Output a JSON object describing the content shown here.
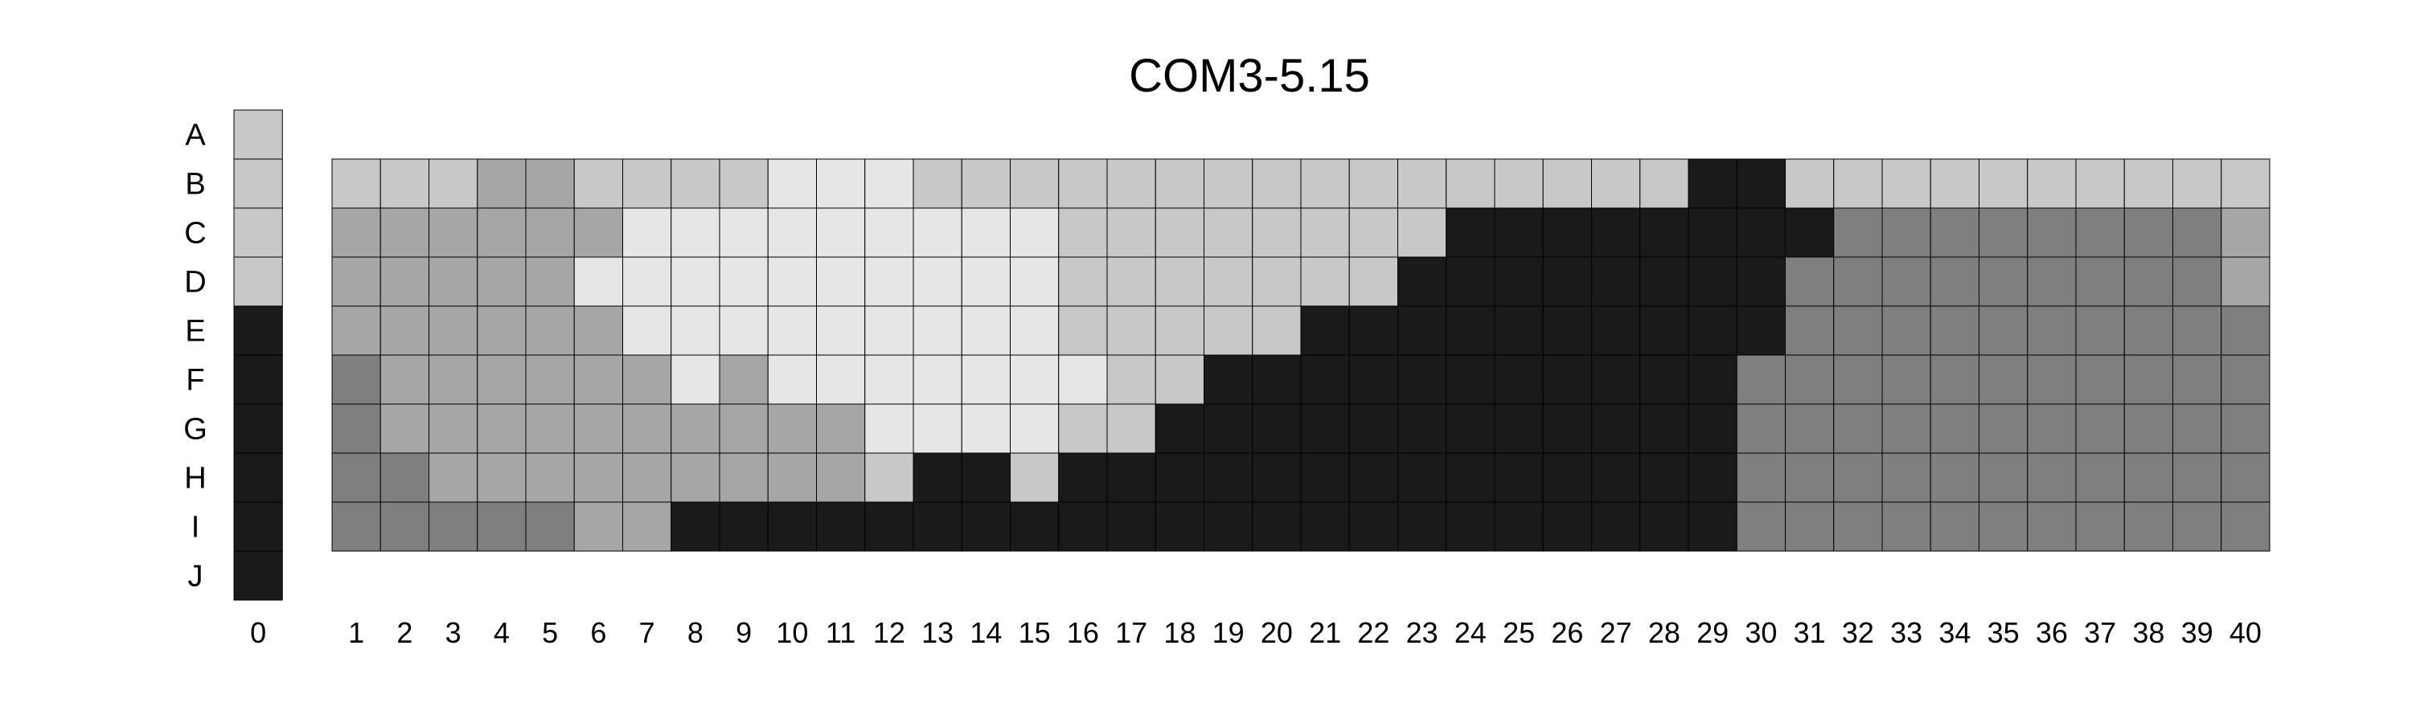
{
  "chart_data": {
    "type": "heatmap",
    "title": "COM3-5.15",
    "rows": [
      "A",
      "B",
      "C",
      "D",
      "E",
      "F",
      "G",
      "H",
      "I",
      "J"
    ],
    "columns": [
      "0",
      "1",
      "2",
      "3",
      "4",
      "5",
      "6",
      "7",
      "8",
      "9",
      "10",
      "11",
      "12",
      "13",
      "14",
      "15",
      "16",
      "17",
      "18",
      "19",
      "20",
      "21",
      "22",
      "23",
      "24",
      "25",
      "26",
      "27",
      "28",
      "29",
      "30",
      "31",
      "32",
      "33",
      "34",
      "35",
      "36",
      "37",
      "38",
      "39",
      "40"
    ],
    "palette": {
      "1": "#e6e6e6",
      "2": "#c8c8c8",
      "3": "#a6a6a6",
      "4": "#7f7f7f",
      "5": "#1a1a1a"
    },
    "column_0": {
      "A": 2,
      "B": 2,
      "C": 2,
      "D": 2,
      "E": 5,
      "F": 5,
      "G": 5,
      "H": 5,
      "I": 5,
      "J": 5
    },
    "grid_rows": [
      "B",
      "C",
      "D",
      "E",
      "F",
      "G",
      "H",
      "I"
    ],
    "grid_values": [
      [
        2,
        2,
        2,
        3,
        3,
        2,
        2,
        2,
        2,
        1,
        1,
        1,
        2,
        2,
        2,
        2,
        2,
        2,
        2,
        2,
        2,
        2,
        2,
        2,
        2,
        2,
        2,
        2,
        5,
        5,
        2,
        2,
        2,
        2,
        2,
        2,
        2,
        2,
        2,
        2
      ],
      [
        3,
        3,
        3,
        3,
        3,
        3,
        1,
        1,
        1,
        1,
        1,
        1,
        1,
        1,
        1,
        2,
        2,
        2,
        2,
        2,
        2,
        2,
        2,
        5,
        5,
        5,
        5,
        5,
        5,
        5,
        5,
        4,
        4,
        4,
        4,
        4,
        4,
        4,
        4,
        3
      ],
      [
        3,
        3,
        3,
        3,
        3,
        1,
        1,
        1,
        1,
        1,
        1,
        1,
        1,
        1,
        1,
        2,
        2,
        2,
        2,
        2,
        2,
        2,
        5,
        5,
        5,
        5,
        5,
        5,
        5,
        5,
        4,
        4,
        4,
        4,
        4,
        4,
        4,
        4,
        4,
        3
      ],
      [
        3,
        3,
        3,
        3,
        3,
        3,
        1,
        1,
        1,
        1,
        1,
        1,
        1,
        1,
        1,
        2,
        2,
        2,
        2,
        2,
        5,
        5,
        5,
        5,
        5,
        5,
        5,
        5,
        5,
        5,
        4,
        4,
        4,
        4,
        4,
        4,
        4,
        4,
        4,
        4
      ],
      [
        4,
        3,
        3,
        3,
        3,
        3,
        3,
        1,
        3,
        1,
        1,
        1,
        1,
        1,
        1,
        1,
        2,
        2,
        5,
        5,
        5,
        5,
        5,
        5,
        5,
        5,
        5,
        5,
        5,
        4,
        4,
        4,
        4,
        4,
        4,
        4,
        4,
        4,
        4,
        4
      ],
      [
        4,
        3,
        3,
        3,
        3,
        3,
        3,
        3,
        3,
        3,
        3,
        1,
        1,
        1,
        1,
        2,
        2,
        5,
        5,
        5,
        5,
        5,
        5,
        5,
        5,
        5,
        5,
        5,
        5,
        4,
        4,
        4,
        4,
        4,
        4,
        4,
        4,
        4,
        4,
        4
      ],
      [
        4,
        4,
        3,
        3,
        3,
        3,
        3,
        3,
        3,
        3,
        3,
        2,
        5,
        5,
        2,
        5,
        5,
        5,
        5,
        5,
        5,
        5,
        5,
        5,
        5,
        5,
        5,
        5,
        5,
        4,
        4,
        4,
        4,
        4,
        4,
        4,
        4,
        4,
        4,
        4
      ],
      [
        4,
        4,
        4,
        4,
        4,
        3,
        3,
        5,
        5,
        5,
        5,
        5,
        5,
        5,
        5,
        5,
        5,
        5,
        5,
        5,
        5,
        5,
        5,
        5,
        5,
        5,
        5,
        5,
        5,
        4,
        4,
        4,
        4,
        4,
        4,
        4,
        4,
        4,
        4,
        4
      ]
    ]
  }
}
